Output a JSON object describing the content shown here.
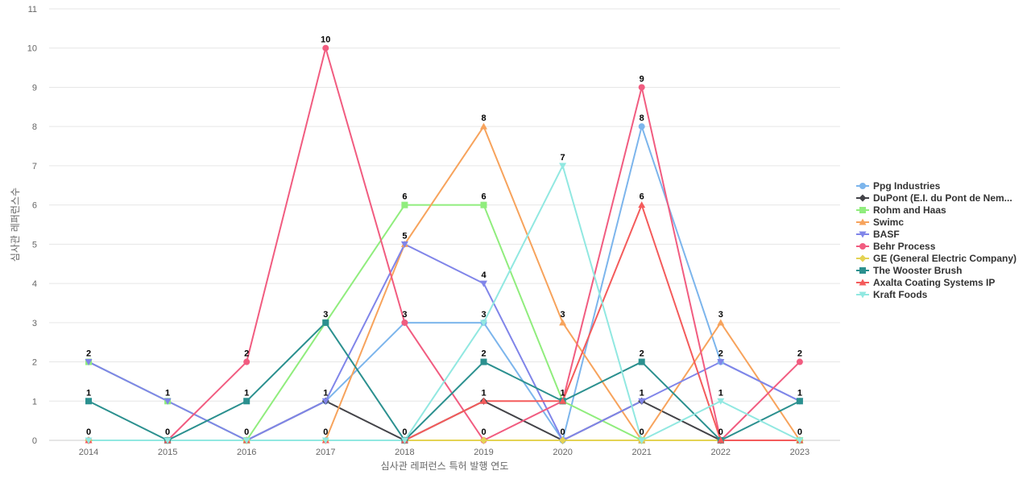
{
  "chart_data": {
    "type": "line",
    "title": "",
    "xlabel": "심사관 레퍼런스 특허 발행 연도",
    "ylabel": "심사관 레퍼런스수",
    "ylim": [
      0,
      11
    ],
    "grid": true,
    "legend_position": "right",
    "categories": [
      "2014",
      "2015",
      "2016",
      "2017",
      "2018",
      "2019",
      "2020",
      "2021",
      "2022",
      "2023"
    ],
    "yticks": [
      "0",
      "1",
      "2",
      "3",
      "4",
      "5",
      "6",
      "7",
      "8",
      "9",
      "10",
      "11"
    ],
    "series": [
      {
        "name": "Ppg Industries",
        "color": "#7cb5ec",
        "marker": "circle",
        "values": [
          2,
          1,
          0,
          1,
          3,
          3,
          0,
          8,
          2,
          1
        ]
      },
      {
        "name": "DuPont (E.I. du Pont de Nem...",
        "color": "#434348",
        "marker": "diamond",
        "values": [
          0,
          0,
          0,
          1,
          0,
          1,
          0,
          1,
          0,
          0
        ]
      },
      {
        "name": "Rohm and Haas",
        "color": "#90ed7d",
        "marker": "square",
        "values": [
          2,
          1,
          0,
          3,
          6,
          6,
          1,
          0,
          0,
          0
        ]
      },
      {
        "name": "Swimc",
        "color": "#f7a35c",
        "marker": "triangle",
        "values": [
          0,
          0,
          0,
          0,
          5,
          8,
          3,
          0,
          3,
          0
        ]
      },
      {
        "name": "BASF",
        "color": "#8085e9",
        "marker": "triangle-down",
        "values": [
          2,
          1,
          0,
          1,
          5,
          4,
          0,
          1,
          2,
          1
        ]
      },
      {
        "name": "Behr Process",
        "color": "#f15c80",
        "marker": "circle",
        "values": [
          0,
          0,
          2,
          10,
          3,
          0,
          1,
          9,
          0,
          2
        ]
      },
      {
        "name": "GE (General Electric Company)",
        "color": "#e4d354",
        "marker": "diamond",
        "values": [
          0,
          0,
          0,
          0,
          0,
          0,
          0,
          0,
          0,
          0
        ]
      },
      {
        "name": "The Wooster Brush",
        "color": "#2b908f",
        "marker": "square",
        "values": [
          1,
          0,
          1,
          3,
          0,
          2,
          1,
          2,
          0,
          1
        ]
      },
      {
        "name": "Axalta Coating Systems IP",
        "color": "#f45b5b",
        "marker": "triangle",
        "values": [
          0,
          0,
          0,
          0,
          0,
          1,
          1,
          6,
          0,
          0
        ]
      },
      {
        "name": "Kraft Foods",
        "color": "#91e8e1",
        "marker": "triangle-down",
        "values": [
          0,
          0,
          0,
          0,
          0,
          3,
          7,
          0,
          1,
          0
        ]
      }
    ],
    "data_labels": [
      {
        "x": "2014",
        "value": 2
      },
      {
        "x": "2014",
        "value": 1
      },
      {
        "x": "2014",
        "value": 0
      },
      {
        "x": "2015",
        "value": 1
      },
      {
        "x": "2015",
        "value": 0
      },
      {
        "x": "2016",
        "value": 2
      },
      {
        "x": "2016",
        "value": 1
      },
      {
        "x": "2016",
        "value": 0
      },
      {
        "x": "2017",
        "value": 10
      },
      {
        "x": "2017",
        "value": 3
      },
      {
        "x": "2017",
        "value": 1
      },
      {
        "x": "2017",
        "value": 0
      },
      {
        "x": "2018",
        "value": 6
      },
      {
        "x": "2018",
        "value": 5
      },
      {
        "x": "2018",
        "value": 3
      },
      {
        "x": "2018",
        "value": 0
      },
      {
        "x": "2019",
        "value": 8
      },
      {
        "x": "2019",
        "value": 6
      },
      {
        "x": "2019",
        "value": 4
      },
      {
        "x": "2019",
        "value": 3
      },
      {
        "x": "2019",
        "value": 2
      },
      {
        "x": "2019",
        "value": 1
      },
      {
        "x": "2019",
        "value": 0
      },
      {
        "x": "2020",
        "value": 7
      },
      {
        "x": "2020",
        "value": 3
      },
      {
        "x": "2020",
        "value": 1
      },
      {
        "x": "2020",
        "value": 0
      },
      {
        "x": "2021",
        "value": 9
      },
      {
        "x": "2021",
        "value": 8
      },
      {
        "x": "2021",
        "value": 6
      },
      {
        "x": "2021",
        "value": 2
      },
      {
        "x": "2021",
        "value": 1
      },
      {
        "x": "2021",
        "value": 0
      },
      {
        "x": "2022",
        "value": 3
      },
      {
        "x": "2022",
        "value": 2
      },
      {
        "x": "2022",
        "value": 1
      },
      {
        "x": "2022",
        "value": 0
      },
      {
        "x": "2023",
        "value": 2
      },
      {
        "x": "2023",
        "value": 1
      },
      {
        "x": "2023",
        "value": 0
      }
    ]
  }
}
